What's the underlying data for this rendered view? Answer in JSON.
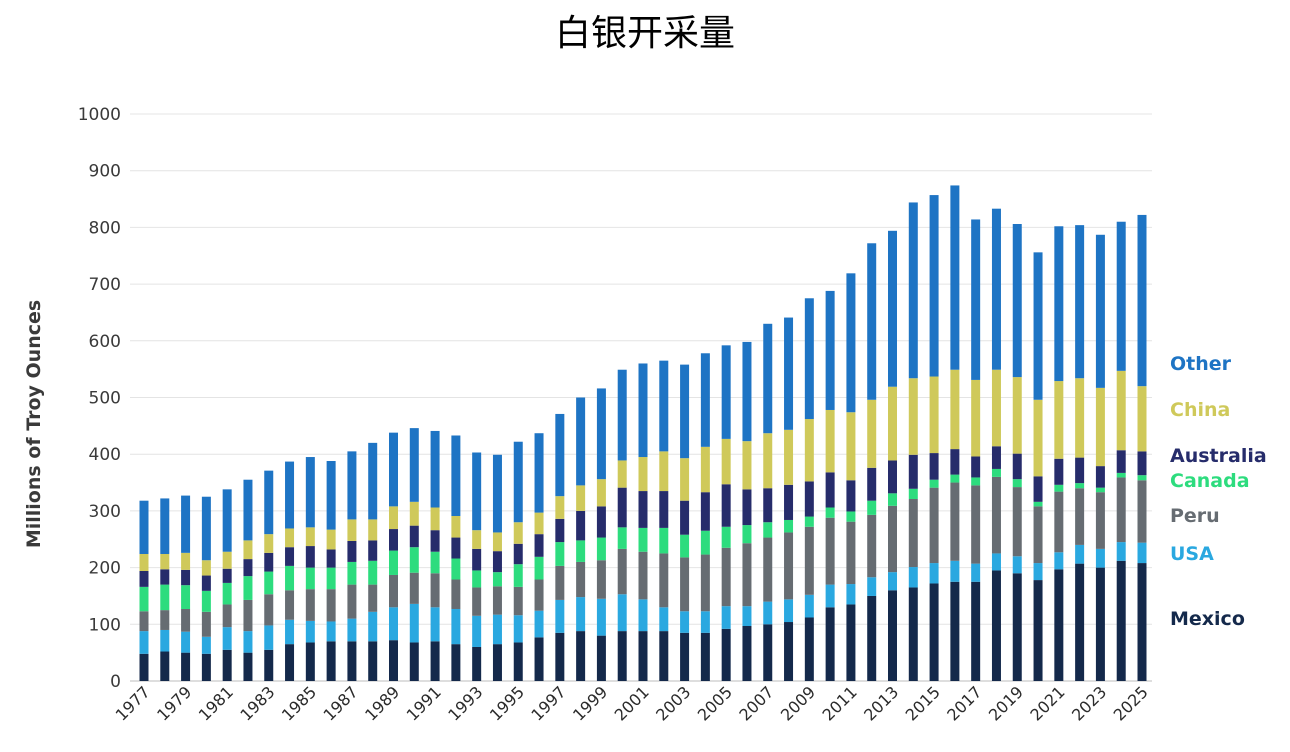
{
  "chart_data": {
    "type": "bar",
    "stacked": true,
    "title": "白银开采量",
    "xlabel": "",
    "ylabel": "Millions of Troy Ounces",
    "ylim": [
      0,
      1000
    ],
    "yticks": [
      0,
      100,
      200,
      300,
      400,
      500,
      600,
      700,
      800,
      900,
      1000
    ],
    "grid": true,
    "legend_position": "right",
    "categories": [
      "1977",
      "1978",
      "1979",
      "1980",
      "1981",
      "1982",
      "1983",
      "1984",
      "1985",
      "1986",
      "1987",
      "1988",
      "1989",
      "1990",
      "1991",
      "1992",
      "1993",
      "1994",
      "1995",
      "1996",
      "1997",
      "1998",
      "1999",
      "2000",
      "2001",
      "2002",
      "2003",
      "2004",
      "2005",
      "2006",
      "2007",
      "2008",
      "2009",
      "2010",
      "2011",
      "2012",
      "2013",
      "2014",
      "2015",
      "2016",
      "2017",
      "2018",
      "2019",
      "2020",
      "2021",
      "2022",
      "2023",
      "2024",
      "2025"
    ],
    "xtick_labels": [
      "1977",
      "1979",
      "1981",
      "1983",
      "1985",
      "1987",
      "1989",
      "1991",
      "1993",
      "1995",
      "1997",
      "1999",
      "2001",
      "2003",
      "2005",
      "2007",
      "2009",
      "2011",
      "2013",
      "2015",
      "2017",
      "2019",
      "2021",
      "2023",
      "2025"
    ],
    "series": [
      {
        "name": "Mexico",
        "color": "#14294b",
        "values": [
          48,
          52,
          50,
          48,
          55,
          50,
          55,
          65,
          68,
          70,
          70,
          70,
          72,
          68,
          70,
          65,
          60,
          65,
          68,
          77,
          85,
          88,
          80,
          88,
          88,
          88,
          85,
          85,
          92,
          97,
          100,
          104,
          112,
          130,
          135,
          150,
          160,
          165,
          172,
          175,
          175,
          195,
          190,
          178,
          197,
          207,
          200,
          212,
          208
        ]
      },
      {
        "name": "USA",
        "color": "#2aa8e0",
        "values": [
          40,
          38,
          37,
          30,
          40,
          38,
          43,
          43,
          38,
          35,
          40,
          52,
          58,
          68,
          60,
          62,
          55,
          52,
          48,
          47,
          58,
          60,
          65,
          65,
          56,
          42,
          38,
          38,
          40,
          35,
          40,
          40,
          40,
          40,
          36,
          33,
          32,
          36,
          36,
          37,
          32,
          30,
          30,
          30,
          30,
          33,
          33,
          33,
          36
        ]
      },
      {
        "name": "Peru",
        "color": "#666c72",
        "values": [
          35,
          35,
          40,
          44,
          40,
          55,
          55,
          52,
          56,
          57,
          60,
          48,
          57,
          55,
          60,
          52,
          50,
          50,
          50,
          55,
          60,
          62,
          68,
          80,
          84,
          95,
          95,
          100,
          103,
          111,
          113,
          118,
          120,
          118,
          110,
          110,
          117,
          120,
          133,
          138,
          138,
          135,
          122,
          100,
          107,
          100,
          100,
          114,
          110
        ]
      },
      {
        "name": "Canada",
        "color": "#2ddc7e",
        "values": [
          43,
          45,
          42,
          37,
          38,
          42,
          40,
          43,
          38,
          38,
          40,
          42,
          43,
          45,
          38,
          37,
          30,
          25,
          40,
          40,
          42,
          38,
          40,
          38,
          42,
          45,
          40,
          42,
          37,
          32,
          27,
          22,
          18,
          18,
          18,
          25,
          22,
          18,
          14,
          14,
          14,
          14,
          14,
          8,
          12,
          9,
          8,
          8,
          9
        ]
      },
      {
        "name": "Australia",
        "color": "#262c6b",
        "values": [
          28,
          27,
          27,
          27,
          25,
          30,
          33,
          33,
          38,
          32,
          37,
          36,
          38,
          38,
          38,
          37,
          38,
          37,
          36,
          40,
          41,
          52,
          55,
          70,
          65,
          65,
          60,
          68,
          75,
          63,
          60,
          62,
          62,
          62,
          55,
          58,
          58,
          60,
          47,
          45,
          37,
          40,
          45,
          45,
          46,
          45,
          38,
          40,
          42
        ]
      },
      {
        "name": "China",
        "color": "#cfc95a",
        "values": [
          30,
          27,
          30,
          27,
          30,
          33,
          33,
          33,
          33,
          35,
          38,
          37,
          40,
          42,
          40,
          38,
          33,
          33,
          38,
          38,
          40,
          45,
          48,
          48,
          60,
          70,
          75,
          80,
          80,
          85,
          97,
          97,
          110,
          110,
          120,
          120,
          130,
          135,
          135,
          140,
          135,
          135,
          135,
          135,
          137,
          140,
          138,
          140,
          115
        ]
      },
      {
        "name": "Other",
        "color": "#1e74c4",
        "values": [
          94,
          98,
          101,
          112,
          110,
          107,
          112,
          118,
          124,
          121,
          120,
          135,
          130,
          130,
          135,
          142,
          137,
          137,
          142,
          140,
          145,
          155,
          160,
          160,
          165,
          160,
          165,
          165,
          165,
          175,
          193,
          198,
          213,
          210,
          245,
          276,
          275,
          310,
          320,
          325,
          283,
          284,
          270,
          260,
          273,
          270,
          270,
          263,
          302
        ]
      }
    ]
  }
}
